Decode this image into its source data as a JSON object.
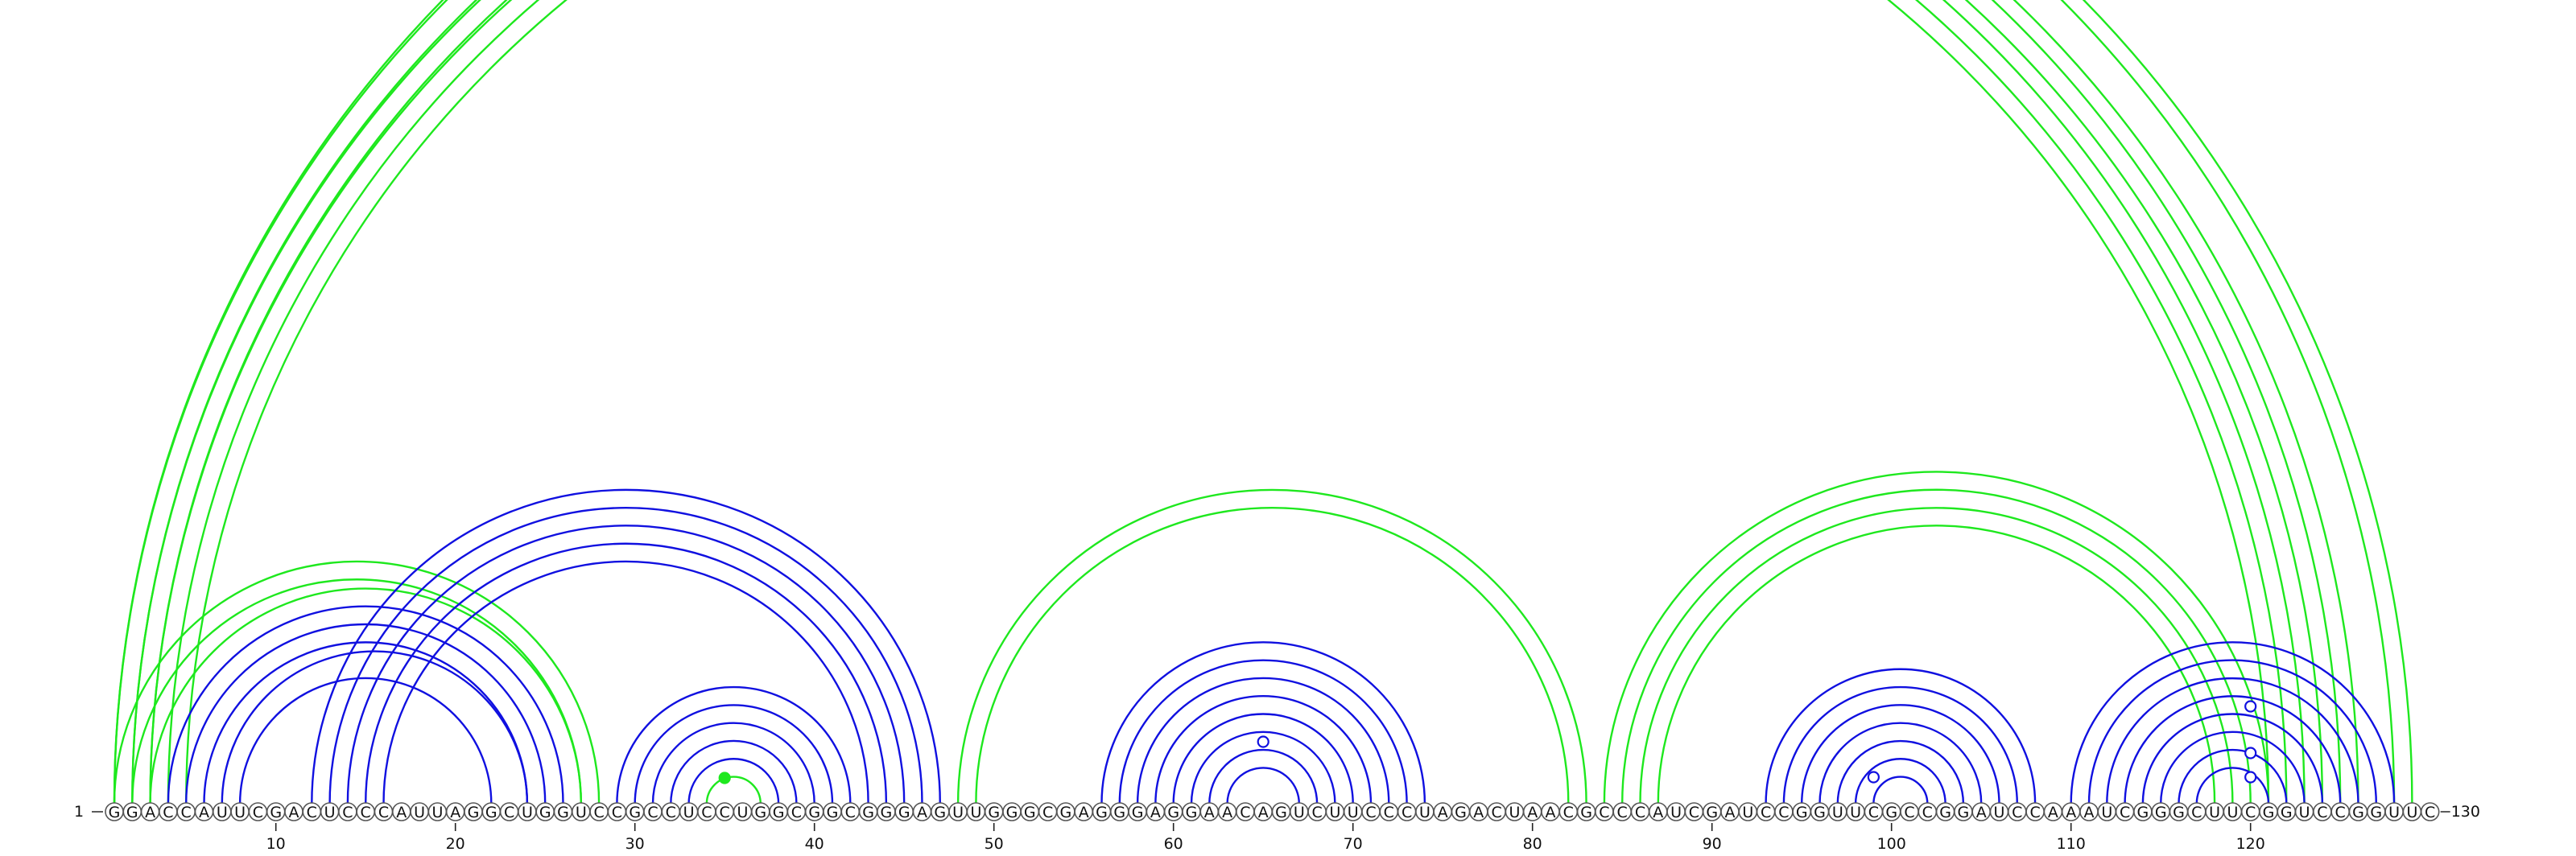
{
  "sequence": "GGACCAUUCGACUCCCAUUAGGCUGGUCCGCCUCCUGGCGGCGGGAGUUGGGCGAGGGAGGAACAGUCUUCCCUAGACUAACGCCCAUCGAUCCGGUUCGCCGGAUCCAAAUCGGGCUUCGGUCCGGUUC",
  "start_label": "1",
  "end_label": "130",
  "ticks": [
    "10",
    "20",
    "30",
    "40",
    "50",
    "60",
    "70",
    "80",
    "90",
    "100",
    "110",
    "120"
  ],
  "colors": {
    "blue": "#1010e0",
    "green": "#1ee81e"
  },
  "arcs": [
    {
      "i": 1,
      "j": 129,
      "color": "green"
    },
    {
      "i": 1,
      "j": 128,
      "color": "green"
    },
    {
      "i": 2,
      "j": 126,
      "color": "green"
    },
    {
      "i": 2,
      "j": 125,
      "color": "green"
    },
    {
      "i": 3,
      "j": 124,
      "color": "green"
    },
    {
      "i": 3,
      "j": 123,
      "color": "green"
    },
    {
      "i": 4,
      "j": 122,
      "color": "green"
    },
    {
      "i": 5,
      "j": 121,
      "color": "green"
    },
    {
      "i": 1,
      "j": 28,
      "color": "green"
    },
    {
      "i": 2,
      "j": 27,
      "color": "green"
    },
    {
      "i": 3,
      "j": 27,
      "color": "green"
    },
    {
      "i": 4,
      "j": 26,
      "color": "blue"
    },
    {
      "i": 5,
      "j": 25,
      "color": "blue"
    },
    {
      "i": 6,
      "j": 24,
      "color": "blue"
    },
    {
      "i": 7,
      "j": 24,
      "color": "blue"
    },
    {
      "i": 8,
      "j": 22,
      "color": "blue"
    },
    {
      "i": 12,
      "j": 47,
      "color": "blue"
    },
    {
      "i": 13,
      "j": 46,
      "color": "blue"
    },
    {
      "i": 14,
      "j": 45,
      "color": "blue"
    },
    {
      "i": 15,
      "j": 44,
      "color": "blue"
    },
    {
      "i": 16,
      "j": 43,
      "color": "blue"
    },
    {
      "i": 29,
      "j": 42,
      "color": "blue"
    },
    {
      "i": 30,
      "j": 41,
      "color": "blue"
    },
    {
      "i": 31,
      "j": 40,
      "color": "blue"
    },
    {
      "i": 32,
      "j": 39,
      "color": "blue"
    },
    {
      "i": 33,
      "j": 38,
      "color": "blue"
    },
    {
      "i": 34,
      "j": 37,
      "color": "green"
    },
    {
      "i": 48,
      "j": 83,
      "color": "green"
    },
    {
      "i": 49,
      "j": 82,
      "color": "green"
    },
    {
      "i": 56,
      "j": 74,
      "color": "blue"
    },
    {
      "i": 57,
      "j": 73,
      "color": "blue"
    },
    {
      "i": 58,
      "j": 72,
      "color": "blue"
    },
    {
      "i": 59,
      "j": 71,
      "color": "blue"
    },
    {
      "i": 60,
      "j": 70,
      "color": "blue"
    },
    {
      "i": 61,
      "j": 69,
      "color": "blue"
    },
    {
      "i": 62,
      "j": 68,
      "color": "blue"
    },
    {
      "i": 63,
      "j": 67,
      "color": "blue"
    },
    {
      "i": 84,
      "j": 121,
      "color": "green"
    },
    {
      "i": 85,
      "j": 120,
      "color": "green"
    },
    {
      "i": 86,
      "j": 119,
      "color": "green"
    },
    {
      "i": 87,
      "j": 118,
      "color": "green"
    },
    {
      "i": 93,
      "j": 108,
      "color": "blue"
    },
    {
      "i": 94,
      "j": 107,
      "color": "blue"
    },
    {
      "i": 95,
      "j": 106,
      "color": "blue"
    },
    {
      "i": 96,
      "j": 105,
      "color": "blue"
    },
    {
      "i": 97,
      "j": 104,
      "color": "blue"
    },
    {
      "i": 98,
      "j": 103,
      "color": "blue"
    },
    {
      "i": 99,
      "j": 102,
      "color": "blue"
    },
    {
      "i": 110,
      "j": 128,
      "color": "blue"
    },
    {
      "i": 111,
      "j": 127,
      "color": "blue"
    },
    {
      "i": 112,
      "j": 126,
      "color": "blue"
    },
    {
      "i": 113,
      "j": 125,
      "color": "blue"
    },
    {
      "i": 114,
      "j": 124,
      "color": "blue"
    },
    {
      "i": 115,
      "j": 123,
      "color": "blue"
    },
    {
      "i": 116,
      "j": 122,
      "color": "blue"
    },
    {
      "i": 117,
      "j": 121,
      "color": "blue"
    }
  ],
  "markers": [
    {
      "pos": 35,
      "height": 27,
      "fill": "green"
    },
    {
      "pos": 65,
      "height": 72,
      "fill": "white"
    },
    {
      "pos": 99,
      "height": 28,
      "fill": "white"
    },
    {
      "pos": 120,
      "height": 28,
      "fill": "white"
    },
    {
      "pos": 120,
      "height": 58,
      "fill": "white"
    },
    {
      "pos": 120,
      "height": 116,
      "fill": "white"
    }
  ]
}
